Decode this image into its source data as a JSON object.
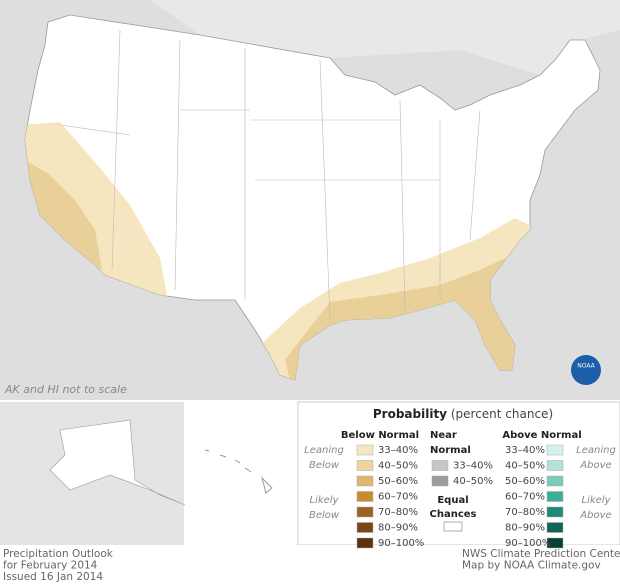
{
  "map": {
    "note": "AK and HI not to scale",
    "logo": "NOAA",
    "regions": {
      "below_light": "#f6e6bf",
      "below_mid": "#e9cf98"
    }
  },
  "legend": {
    "title": "Probability",
    "subtitle": "(percent chance)",
    "below": {
      "header": "Below Normal",
      "leaning": [
        "Leaning",
        "Below"
      ],
      "likely": [
        "Likely",
        "Below"
      ],
      "items": [
        {
          "label": "33–40%",
          "color": "#f7e7c1"
        },
        {
          "label": "40–50%",
          "color": "#eed5a0"
        },
        {
          "label": "50–60%",
          "color": "#ddb770"
        },
        {
          "label": "60–70%",
          "color": "#c98b2e"
        },
        {
          "label": "70–80%",
          "color": "#9e6320"
        },
        {
          "label": "80–90%",
          "color": "#7a4617"
        },
        {
          "label": "90–100%",
          "color": "#5a320f"
        }
      ]
    },
    "near": {
      "header": [
        "Near",
        "Normal"
      ],
      "items": [
        {
          "label": "33–40%",
          "color": "#c6c6c6"
        },
        {
          "label": "40–50%",
          "color": "#9b9b9b"
        }
      ]
    },
    "equal": {
      "label": [
        "Equal",
        "Chances"
      ],
      "color": "#ffffff"
    },
    "above": {
      "header": "Above Normal",
      "leaning": [
        "Leaning",
        "Above"
      ],
      "likely": [
        "Likely",
        "Above"
      ],
      "items": [
        {
          "label": "33–40%",
          "color": "#d6f0ec"
        },
        {
          "label": "40–50%",
          "color": "#b2e2da"
        },
        {
          "label": "50–60%",
          "color": "#7bcbbb"
        },
        {
          "label": "60–70%",
          "color": "#3fae98"
        },
        {
          "label": "70–80%",
          "color": "#1c8a77"
        },
        {
          "label": "80–90%",
          "color": "#0f6657"
        },
        {
          "label": "90–100%",
          "color": "#083f36"
        }
      ]
    }
  },
  "footer": {
    "left": [
      "Precipitation Outlook",
      "for February 2014",
      "Issued 16 Jan 2014"
    ],
    "right": [
      "NWS Climate Prediction Center",
      "Map by NOAA Climate.gov"
    ]
  }
}
